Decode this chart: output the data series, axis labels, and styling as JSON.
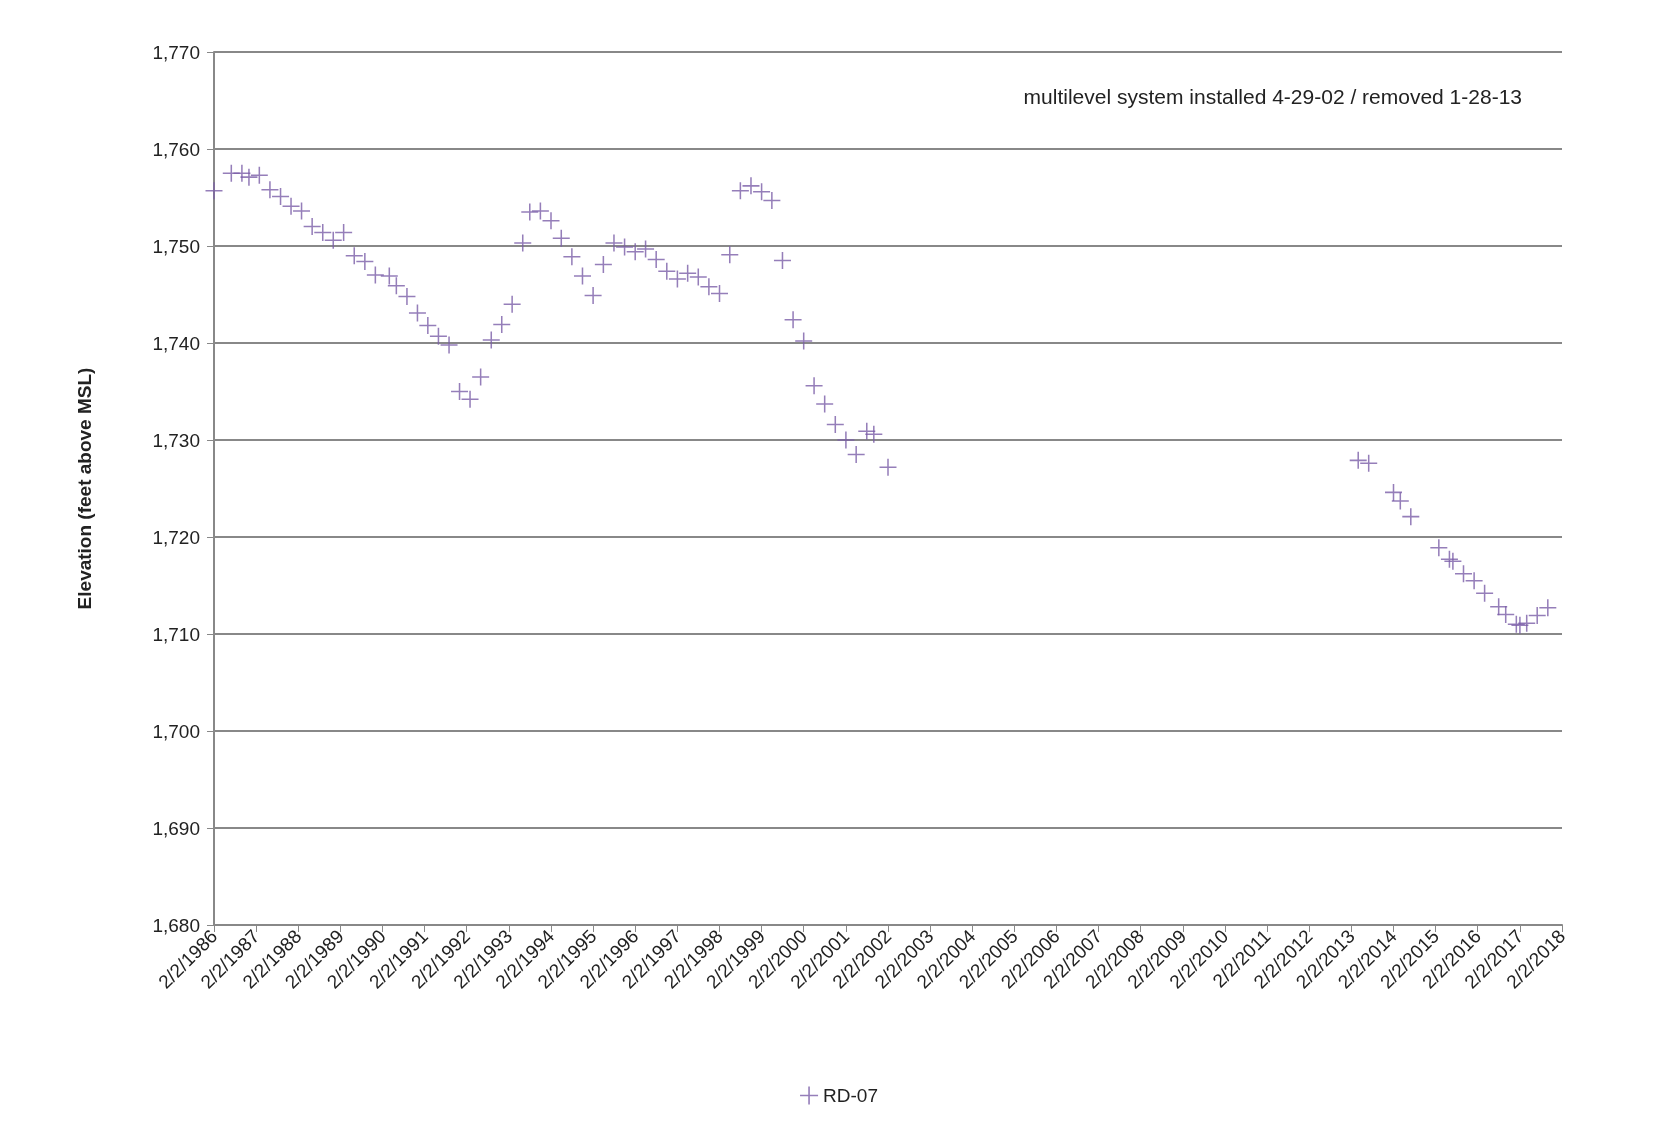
{
  "chart_data": {
    "type": "scatter",
    "ylabel": "Elevation (feet above MSL)",
    "annotations": [
      "multilevel system installed 4-29-02 / removed 1-28-13"
    ],
    "x": [
      "1986-02-02",
      "1986-07-02",
      "1986-10-02",
      "1986-12-02",
      "1987-03-02",
      "1987-06-02",
      "1987-09-02",
      "1987-12-02",
      "1988-03-02",
      "1988-06-02",
      "1988-09-02",
      "1988-12-02",
      "1989-03-02",
      "1989-06-02",
      "1989-09-02",
      "1989-12-02",
      "1990-04-02",
      "1990-06-02",
      "1990-09-02",
      "1990-12-02",
      "1991-03-02",
      "1991-06-02",
      "1991-09-02",
      "1991-12-02",
      "1992-03-02",
      "1992-06-02",
      "1992-09-02",
      "1992-12-02",
      "1993-03-02",
      "1993-06-02",
      "1993-08-02",
      "1993-11-02",
      "1994-02-02",
      "1994-05-02",
      "1994-08-02",
      "1994-11-02",
      "1995-02-02",
      "1995-05-02",
      "1995-08-02",
      "1995-11-02",
      "1996-02-02",
      "1996-05-02",
      "1996-08-02",
      "1996-11-02",
      "1997-02-02",
      "1997-05-02",
      "1997-08-02",
      "1997-11-02",
      "1998-02-02",
      "1998-05-02",
      "1998-08-02",
      "1998-11-02",
      "1999-02-02",
      "1999-05-02",
      "1999-08-02",
      "1999-11-02",
      "2000-02-02",
      "2000-05-02",
      "2000-08-02",
      "2000-11-02",
      "2001-02-02",
      "2001-05-02",
      "2001-08-02",
      "2001-10-02",
      "2002-02-02",
      "2013-04-02",
      "2013-07-02",
      "2014-02-02",
      "2014-04-02",
      "2014-07-02",
      "2015-03-02",
      "2015-06-02",
      "2015-07-02",
      "2015-10-02",
      "2016-01-02",
      "2016-04-02",
      "2016-08-02",
      "2016-10-02",
      "2017-01-02",
      "2017-02-02",
      "2017-04-02",
      "2017-07-02",
      "2017-10-02"
    ],
    "series": [
      {
        "name": "RD-07",
        "color": "#7b5ea7",
        "values": [
          1755.7,
          1757.5,
          1757.5,
          1757.1,
          1757.3,
          1755.8,
          1755.1,
          1754.1,
          1753.6,
          1752.0,
          1751.4,
          1750.6,
          1751.4,
          1749.0,
          1748.4,
          1747.0,
          1746.9,
          1745.9,
          1744.8,
          1743.1,
          1741.8,
          1740.7,
          1739.8,
          1735.0,
          1734.2,
          1736.5,
          1740.3,
          1741.9,
          1744.0,
          1750.3,
          1753.5,
          1753.6,
          1752.6,
          1750.8,
          1748.9,
          1746.9,
          1744.9,
          1748.1,
          1750.3,
          1749.9,
          1749.4,
          1749.7,
          1748.6,
          1747.4,
          1746.6,
          1747.2,
          1746.8,
          1745.8,
          1745.1,
          1749.1,
          1755.7,
          1756.2,
          1755.6,
          1754.7,
          1748.5,
          1742.4,
          1740.2,
          1735.6,
          1733.7,
          1731.6,
          1730.0,
          1728.5,
          1730.9,
          1730.6,
          1727.2,
          1727.9,
          1727.6,
          1724.6,
          1723.7,
          1722.1,
          1718.9,
          1717.7,
          1717.5,
          1716.2,
          1715.5,
          1714.2,
          1712.8,
          1712.0,
          1711.0,
          1710.9,
          1711.1,
          1711.9,
          1712.7
        ]
      }
    ],
    "xlim": [
      "1986-02-02",
      "2018-02-02"
    ],
    "xticks": [
      {
        "value": "1986-02-02",
        "label": "2/2/1986"
      },
      {
        "value": "1987-02-02",
        "label": "2/2/1987"
      },
      {
        "value": "1988-02-02",
        "label": "2/2/1988"
      },
      {
        "value": "1989-02-02",
        "label": "2/2/1989"
      },
      {
        "value": "1990-02-02",
        "label": "2/2/1990"
      },
      {
        "value": "1991-02-02",
        "label": "2/2/1991"
      },
      {
        "value": "1992-02-02",
        "label": "2/2/1992"
      },
      {
        "value": "1993-02-02",
        "label": "2/2/1993"
      },
      {
        "value": "1994-02-02",
        "label": "2/2/1994"
      },
      {
        "value": "1995-02-02",
        "label": "2/2/1995"
      },
      {
        "value": "1996-02-02",
        "label": "2/2/1996"
      },
      {
        "value": "1997-02-02",
        "label": "2/2/1997"
      },
      {
        "value": "1998-02-02",
        "label": "2/2/1998"
      },
      {
        "value": "1999-02-02",
        "label": "2/2/1999"
      },
      {
        "value": "2000-02-02",
        "label": "2/2/2000"
      },
      {
        "value": "2001-02-02",
        "label": "2/2/2001"
      },
      {
        "value": "2002-02-02",
        "label": "2/2/2002"
      },
      {
        "value": "2003-02-02",
        "label": "2/2/2003"
      },
      {
        "value": "2004-02-02",
        "label": "2/2/2004"
      },
      {
        "value": "2005-02-02",
        "label": "2/2/2005"
      },
      {
        "value": "2006-02-02",
        "label": "2/2/2006"
      },
      {
        "value": "2007-02-02",
        "label": "2/2/2007"
      },
      {
        "value": "2008-02-02",
        "label": "2/2/2008"
      },
      {
        "value": "2009-02-02",
        "label": "2/2/2009"
      },
      {
        "value": "2010-02-02",
        "label": "2/2/2010"
      },
      {
        "value": "2011-02-02",
        "label": "2/2/2011"
      },
      {
        "value": "2012-02-02",
        "label": "2/2/2012"
      },
      {
        "value": "2013-02-02",
        "label": "2/2/2013"
      },
      {
        "value": "2014-02-02",
        "label": "2/2/2014"
      },
      {
        "value": "2015-02-02",
        "label": "2/2/2015"
      },
      {
        "value": "2016-02-02",
        "label": "2/2/2016"
      },
      {
        "value": "2017-02-02",
        "label": "2/2/2017"
      },
      {
        "value": "2018-02-02",
        "label": "2/2/2018"
      }
    ],
    "ylim": [
      1680,
      1770
    ],
    "yticks": [
      {
        "value": 1680,
        "label": "1,680"
      },
      {
        "value": 1690,
        "label": "1,690"
      },
      {
        "value": 1700,
        "label": "1,700"
      },
      {
        "value": 1710,
        "label": "1,710"
      },
      {
        "value": 1720,
        "label": "1,720"
      },
      {
        "value": 1730,
        "label": "1,730"
      },
      {
        "value": 1740,
        "label": "1,740"
      },
      {
        "value": 1750,
        "label": "1,750"
      },
      {
        "value": 1760,
        "label": "1,760"
      },
      {
        "value": 1770,
        "label": "1,770"
      }
    ],
    "grid": "y",
    "legend": "bottom",
    "marker": "cross"
  }
}
